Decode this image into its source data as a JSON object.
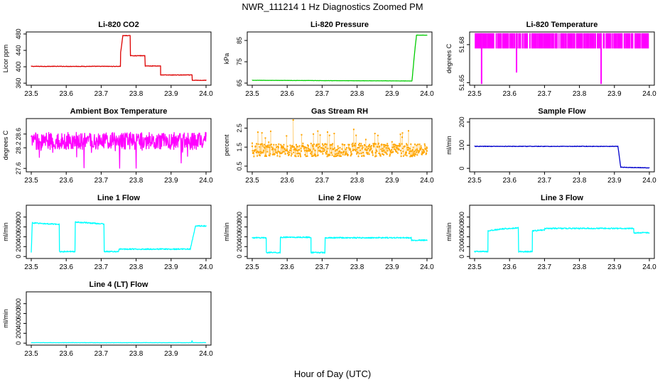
{
  "figure": {
    "title": "NWR_111214  1 Hz Diagnostics Zoomed PM",
    "xlabel": "Hour of Day (UTC)"
  },
  "colors": {
    "red": "#dd0000",
    "green": "#00cc00",
    "magenta": "#ff00ff",
    "orange": "#ffa500",
    "blue": "#0000cc",
    "cyan": "#00ffff"
  },
  "chart_data": [
    {
      "type": "line",
      "title": "Li-820 CO2",
      "ylabel": "Licor ppm",
      "color": "#dd0000",
      "xlim": [
        23.5,
        24.0
      ],
      "ylim": [
        355,
        485
      ],
      "xticks": [
        "23.5",
        "23.6",
        "23.7",
        "23.8",
        "23.9",
        "24.0"
      ],
      "yticks": [
        {
          "v": 360,
          "label": "360"
        },
        {
          "v": 400,
          "label": "400"
        },
        {
          "v": 440,
          "label": "440"
        },
        {
          "v": 480,
          "label": "480"
        }
      ],
      "series": [
        {
          "x": [
            23.5,
            23.755,
            23.755,
            23.762,
            23.772,
            23.783,
            23.783,
            23.825,
            23.825,
            23.87,
            23.87,
            23.96,
            23.96,
            24.0
          ],
          "y": [
            401,
            401,
            430,
            476,
            476,
            476,
            427,
            427,
            402,
            402,
            380,
            380,
            367,
            367
          ],
          "noise": 0.6
        }
      ]
    },
    {
      "type": "line",
      "title": "Li-820 Pressure",
      "ylabel": "kPa",
      "color": "#00cc00",
      "xlim": [
        23.5,
        24.0
      ],
      "ylim": [
        64,
        89
      ],
      "xticks": [
        "23.5",
        "23.6",
        "23.7",
        "23.8",
        "23.9",
        "24.0"
      ],
      "yticks": [
        {
          "v": 65,
          "label": "65"
        },
        {
          "v": 75,
          "label": "75"
        },
        {
          "v": 85,
          "label": "85"
        }
      ],
      "series": [
        {
          "x": [
            23.5,
            23.955,
            23.957,
            23.965,
            23.97,
            24.0
          ],
          "y": [
            66.3,
            66.0,
            66.0,
            80.0,
            87.5,
            87.5
          ],
          "noise": 0.05
        }
      ]
    },
    {
      "type": "line",
      "title": "Li-820 Temperature",
      "ylabel": "degrees C",
      "color": "#ff00ff",
      "xlim": [
        23.5,
        24.0
      ],
      "ylim": [
        51.648,
        51.69
      ],
      "xticks": [
        "23.5",
        "23.6",
        "23.7",
        "23.8",
        "23.9",
        "24.0"
      ],
      "yticks": [
        {
          "v": 51.65,
          "label": "51.65"
        },
        {
          "v": 51.68,
          "label": "51.68"
        }
      ],
      "series": [
        {
          "x": [
            23.5,
            24.0
          ],
          "y": [
            51.689,
            51.689
          ],
          "noise": 0,
          "dips": [
            {
              "x": 23.52,
              "y": 51.649
            },
            {
              "x": 23.62,
              "y": 51.658
            },
            {
              "x": 23.862,
              "y": 51.649
            }
          ],
          "band": [
            51.677,
            51.689
          ]
        }
      ]
    },
    {
      "type": "line",
      "title": "Ambient Box Temperature",
      "ylabel": "degrees C",
      "color": "#ff00ff",
      "xlim": [
        23.5,
        24.0
      ],
      "ylim": [
        27.5,
        29.05
      ],
      "xticks": [
        "23.5",
        "23.6",
        "23.7",
        "23.8",
        "23.9",
        "24.0"
      ],
      "yticks": [
        {
          "v": 27.6,
          "label": "27.6"
        },
        {
          "v": 28.2,
          "label": "28.2"
        },
        {
          "v": 28.6,
          "label": "28.6"
        }
      ],
      "series": [
        {
          "x": [
            23.5,
            24.0
          ],
          "y": [
            28.4,
            28.4
          ],
          "noise": 0.25
        }
      ]
    },
    {
      "type": "scatter",
      "title": "Gas Stream RH",
      "ylabel": "percent",
      "color": "#ffa500",
      "xlim": [
        23.5,
        24.0
      ],
      "ylim": [
        0.2,
        3.0
      ],
      "xticks": [
        "23.5",
        "23.6",
        "23.7",
        "23.8",
        "23.9",
        "24.0"
      ],
      "yticks": [
        {
          "v": 0.5,
          "label": "0.5"
        },
        {
          "v": 1.5,
          "label": "1.5"
        },
        {
          "v": 2.5,
          "label": "2.5"
        }
      ],
      "series": [
        {
          "x": [
            23.5,
            24.0
          ],
          "y": [
            1.35,
            1.35
          ],
          "noise": 0.35
        }
      ]
    },
    {
      "type": "line",
      "title": "Sample Flow",
      "ylabel": "ml/min",
      "color": "#0000cc",
      "xlim": [
        23.5,
        24.0
      ],
      "ylim": [
        -15,
        215
      ],
      "xticks": [
        "23.5",
        "23.6",
        "23.7",
        "23.8",
        "23.9",
        "24.0"
      ],
      "yticks": [
        {
          "v": 0,
          "label": "0"
        },
        {
          "v": 100,
          "label": "100"
        },
        {
          "v": 200,
          "label": "200"
        }
      ],
      "series": [
        {
          "x": [
            23.5,
            23.91,
            23.91,
            23.918,
            23.918,
            24.0
          ],
          "y": [
            95,
            95,
            95,
            5,
            5,
            2
          ],
          "noise": 1.2
        }
      ]
    },
    {
      "type": "line",
      "title": "Line 1 Flow",
      "ylabel": "ml/min",
      "color": "#00ffff",
      "xlim": [
        23.5,
        24.0
      ],
      "ylim": [
        -40,
        1040
      ],
      "xticks": [
        "23.5",
        "23.6",
        "23.7",
        "23.8",
        "23.9",
        "24.0"
      ],
      "yticks": [
        {
          "v": 0,
          "label": "0"
        },
        {
          "v": 200,
          "label": "200"
        },
        {
          "v": 400,
          "label": "400"
        },
        {
          "v": 600,
          "label": "600"
        },
        {
          "v": 800,
          "label": "800"
        }
      ],
      "series": [
        {
          "x": [
            23.5,
            23.5,
            23.503,
            23.503,
            23.58,
            23.58,
            23.625,
            23.625,
            23.708,
            23.708,
            23.75,
            23.75,
            23.955,
            23.955,
            23.97,
            24.0
          ],
          "y": [
            100,
            100,
            680,
            680,
            650,
            100,
            100,
            700,
            660,
            100,
            100,
            150,
            150,
            150,
            620,
            620
          ],
          "noise": 12
        }
      ]
    },
    {
      "type": "line",
      "title": "Line 2 Flow",
      "ylabel": "ml/min",
      "color": "#00ffff",
      "xlim": [
        23.5,
        24.0
      ],
      "ylim": [
        -40,
        1040
      ],
      "xticks": [
        "23.5",
        "23.6",
        "23.7",
        "23.8",
        "23.9",
        "24.0"
      ],
      "yticks": [
        {
          "v": 0,
          "label": "0"
        },
        {
          "v": 200,
          "label": "200"
        },
        {
          "v": 400,
          "label": "400"
        },
        {
          "v": 600,
          "label": "600"
        },
        {
          "v": 800,
          "label": "800"
        }
      ],
      "series": [
        {
          "x": [
            23.5,
            23.54,
            23.54,
            23.58,
            23.58,
            23.668,
            23.668,
            23.708,
            23.708,
            23.955,
            23.955,
            24.0
          ],
          "y": [
            380,
            380,
            80,
            80,
            390,
            390,
            80,
            80,
            380,
            380,
            330,
            330
          ],
          "noise": 12
        }
      ]
    },
    {
      "type": "line",
      "title": "Line 3 Flow",
      "ylabel": "ml/min",
      "color": "#00ffff",
      "xlim": [
        23.5,
        24.0
      ],
      "ylim": [
        -40,
        1040
      ],
      "xticks": [
        "23.5",
        "23.6",
        "23.7",
        "23.8",
        "23.9",
        "24.0"
      ],
      "yticks": [
        {
          "v": 0,
          "label": "0"
        },
        {
          "v": 200,
          "label": "200"
        },
        {
          "v": 400,
          "label": "400"
        },
        {
          "v": 600,
          "label": "600"
        },
        {
          "v": 800,
          "label": "800"
        }
      ],
      "series": [
        {
          "x": [
            23.5,
            23.5,
            23.538,
            23.538,
            23.58,
            23.625,
            23.625,
            23.665,
            23.665,
            23.7,
            23.7,
            23.955,
            23.955,
            24.0
          ],
          "y": [
            520,
            100,
            100,
            520,
            560,
            580,
            100,
            100,
            520,
            540,
            570,
            570,
            480,
            480
          ],
          "noise": 12
        }
      ]
    },
    {
      "type": "line",
      "title": "Line 4 (LT) Flow",
      "ylabel": "ml/min",
      "color": "#00ffff",
      "xlim": [
        23.5,
        24.0
      ],
      "ylim": [
        -40,
        1040
      ],
      "xticks": [
        "23.5",
        "23.6",
        "23.7",
        "23.8",
        "23.9",
        "24.0"
      ],
      "yticks": [
        {
          "v": 0,
          "label": "0"
        },
        {
          "v": 200,
          "label": "200"
        },
        {
          "v": 400,
          "label": "400"
        },
        {
          "v": 600,
          "label": "600"
        },
        {
          "v": 800,
          "label": "800"
        }
      ],
      "series": [
        {
          "x": [
            23.5,
            23.958,
            23.96,
            23.962,
            24.0
          ],
          "y": [
            10,
            10,
            50,
            10,
            10
          ],
          "noise": 2
        }
      ]
    }
  ]
}
